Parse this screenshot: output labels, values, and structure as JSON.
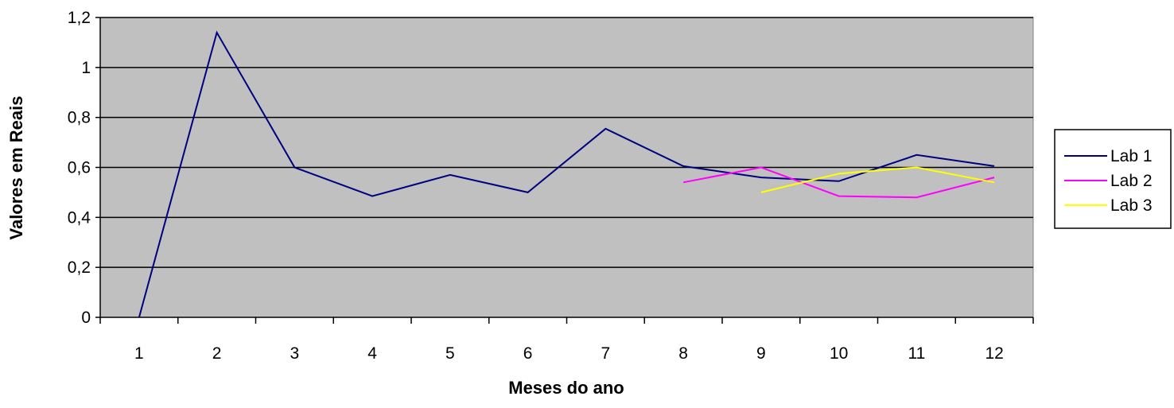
{
  "chart_data": {
    "type": "line",
    "title": "",
    "xlabel": "Meses do ano",
    "ylabel": "Valores em Reais",
    "categories": [
      "1",
      "2",
      "3",
      "4",
      "5",
      "6",
      "7",
      "8",
      "9",
      "10",
      "11",
      "12"
    ],
    "ylim": [
      0,
      1.2
    ],
    "yticks": [
      0,
      0.2,
      0.4,
      0.6,
      0.8,
      1,
      1.2
    ],
    "ytick_labels": [
      "0",
      "0,2",
      "0,4",
      "0,6",
      "0,8",
      "1",
      "1,2"
    ],
    "grid": true,
    "legend_position": "right",
    "colors": {
      "plot_background": "#c0c0c0",
      "gridline": "#000000"
    },
    "series": [
      {
        "name": "Lab 1",
        "color": "#000080",
        "values": [
          0,
          1.14,
          0.6,
          0.485,
          0.57,
          0.5,
          0.755,
          0.605,
          0.56,
          0.545,
          0.65,
          0.605
        ]
      },
      {
        "name": "Lab 2",
        "color": "#ff00ff",
        "values": [
          null,
          null,
          null,
          null,
          null,
          null,
          null,
          0.54,
          0.6,
          0.485,
          0.48,
          0.56
        ]
      },
      {
        "name": "Lab 3",
        "color": "#ffff00",
        "values": [
          null,
          null,
          null,
          null,
          null,
          null,
          null,
          null,
          0.5,
          0.575,
          0.6,
          0.54
        ]
      }
    ]
  }
}
